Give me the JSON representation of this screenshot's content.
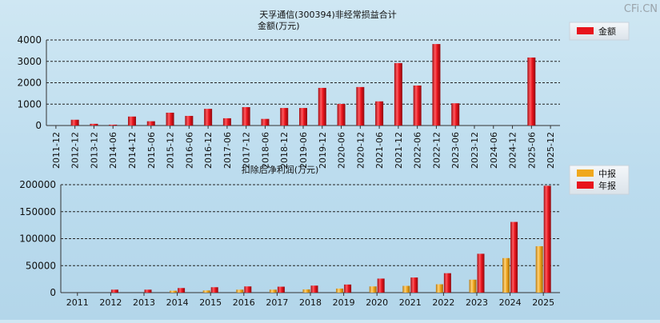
{
  "watermark": "CFi.CN",
  "chart_data": [
    {
      "type": "bar",
      "title": "天孚通信(300394)非经常损益合计",
      "ylabel": "金额(万元)",
      "ylim": [
        0,
        4000
      ],
      "yticks": [
        0,
        1000,
        2000,
        3000,
        4000
      ],
      "grid": true,
      "legend_position": "top-right",
      "categories": [
        "2011-12",
        "2012-12",
        "2013-12",
        "2014-06",
        "2014-12",
        "2015-06",
        "2015-12",
        "2016-06",
        "2016-12",
        "2017-06",
        "2017-12",
        "2018-06",
        "2018-12",
        "2019-06",
        "2019-12",
        "2020-06",
        "2020-12",
        "2021-06",
        "2021-12",
        "2022-06",
        "2022-12",
        "2023-06",
        "2023-12",
        "2024-06",
        "2024-12",
        "2025-06",
        "2025-12"
      ],
      "series": [
        {
          "name": "金额",
          "color": "#e8141c",
          "values": [
            0,
            270,
            80,
            40,
            420,
            200,
            600,
            450,
            780,
            340,
            860,
            310,
            820,
            820,
            1760,
            1010,
            1800,
            1130,
            2920,
            1870,
            3810,
            1040,
            0,
            0,
            0,
            3180,
            0
          ]
        }
      ]
    },
    {
      "type": "bar",
      "title": "扣除后净利润(万元)",
      "ylim": [
        0,
        200000
      ],
      "yticks": [
        0,
        50000,
        100000,
        150000,
        200000
      ],
      "grid": true,
      "legend_position": "top-right",
      "categories": [
        "2011",
        "2012",
        "2013",
        "2014",
        "2015",
        "2016",
        "2017",
        "2018",
        "2019",
        "2020",
        "2021",
        "2022",
        "2023",
        "2024",
        "2025"
      ],
      "series": [
        {
          "name": "中报",
          "color": "#f0a81e",
          "values": [
            0,
            0,
            0,
            3500,
            4000,
            5500,
            5500,
            6000,
            7500,
            11500,
            12500,
            15500,
            24000,
            64000,
            86000
          ]
        },
        {
          "name": "年报",
          "color": "#e8141c",
          "values": [
            0,
            5500,
            5500,
            8500,
            10000,
            11500,
            11000,
            13000,
            15000,
            26000,
            28000,
            36000,
            72000,
            131000,
            198000
          ]
        }
      ]
    }
  ]
}
